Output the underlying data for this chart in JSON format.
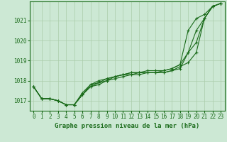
{
  "bg_color": "#cce8d4",
  "grid_color": "#aaccaa",
  "line_color": "#1a6b1a",
  "xlabel": "Graphe pression niveau de la mer (hPa)",
  "xlim": [
    -0.5,
    23.5
  ],
  "ylim": [
    1016.5,
    1021.95
  ],
  "yticks": [
    1017,
    1018,
    1019,
    1020,
    1021
  ],
  "xticks": [
    0,
    1,
    2,
    3,
    4,
    5,
    6,
    7,
    8,
    9,
    10,
    11,
    12,
    13,
    14,
    15,
    16,
    17,
    18,
    19,
    20,
    21,
    22,
    23
  ],
  "series": [
    [
      1017.7,
      1017.1,
      1017.1,
      1017.0,
      1016.8,
      1016.8,
      1017.4,
      1017.8,
      1017.9,
      1018.0,
      1018.2,
      1018.3,
      1018.4,
      1018.4,
      1018.4,
      1018.4,
      1018.4,
      1018.5,
      1018.6,
      1019.4,
      1019.9,
      1021.1,
      1021.7,
      1021.85
    ],
    [
      1017.7,
      1017.1,
      1017.1,
      1017.0,
      1016.8,
      1016.8,
      1017.3,
      1017.7,
      1017.9,
      1018.1,
      1018.2,
      1018.3,
      1018.3,
      1018.4,
      1018.4,
      1018.4,
      1018.5,
      1018.6,
      1018.8,
      1019.4,
      1020.5,
      1021.1,
      1021.7,
      1021.85
    ],
    [
      1017.7,
      1017.1,
      1017.1,
      1017.0,
      1016.8,
      1016.8,
      1017.3,
      1017.8,
      1018.0,
      1018.1,
      1018.2,
      1018.3,
      1018.4,
      1018.4,
      1018.5,
      1018.5,
      1018.5,
      1018.6,
      1018.8,
      1020.5,
      1021.1,
      1021.3,
      1021.7,
      1021.85
    ],
    [
      1017.7,
      1017.1,
      1017.1,
      1017.0,
      1016.8,
      1016.8,
      1017.3,
      1017.7,
      1017.8,
      1018.0,
      1018.1,
      1018.2,
      1018.3,
      1018.3,
      1018.4,
      1018.4,
      1018.4,
      1018.5,
      1018.7,
      1018.9,
      1019.4,
      1021.1,
      1021.7,
      1021.85
    ]
  ]
}
